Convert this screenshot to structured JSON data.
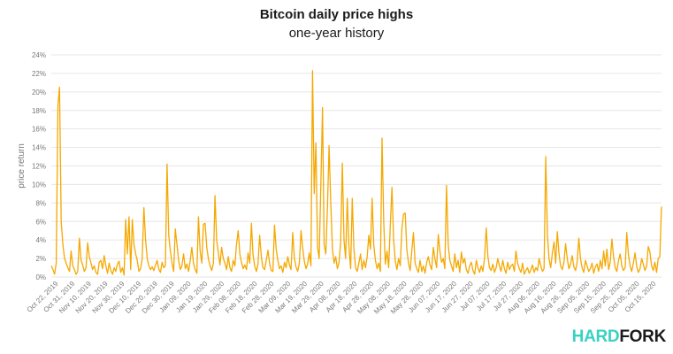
{
  "chart_data": {
    "type": "line",
    "title": "Bitcoin daily price highs",
    "subtitle": "one-year history",
    "ylabel": "price return",
    "xlabel": "",
    "ylim": [
      0,
      24
    ],
    "y_unit": "%",
    "y_ticks": [
      0,
      2,
      4,
      6,
      8,
      10,
      12,
      14,
      16,
      18,
      20,
      22,
      24
    ],
    "grid": true,
    "line_color": "#f5a800",
    "x_tick_labels": [
      "Oct 22, 2019",
      "Oct 31, 2019",
      "Nov 10, 2019",
      "Nov 20, 2019",
      "Nov 30, 2019",
      "Dec 10, 2019",
      "Dec 20, 2019",
      "Dec 30, 2019",
      "Jan 09, 2020",
      "Jan 19, 2020",
      "Jan 29, 2020",
      "Feb 08, 2020",
      "Feb 18, 2020",
      "Feb 28, 2020",
      "Mar 09, 2020",
      "Mar 19, 2020",
      "Mar 29, 2020",
      "Apr 08, 2020",
      "Apr 18, 2020",
      "Apr 28, 2020",
      "May 08, 2020",
      "May 18, 2020",
      "May 28, 2020",
      "Jun 07, 2020",
      "Jun 17, 2020",
      "Jun 27, 2020",
      "Jul 07, 2020",
      "Jul 17, 2020",
      "Jul 27, 2020",
      "Aug 06, 2020",
      "Aug 16, 2020",
      "Aug 26, 2020",
      "Sep 05, 2020",
      "Sep 15, 2020",
      "Sep 25, 2020",
      "Oct 05, 2020",
      "Oct 15, 2020"
    ],
    "series": [
      {
        "values": [
          1.2,
          0.8,
          0.3,
          1.5,
          18.5,
          20.5,
          6.0,
          3.5,
          2.0,
          1.5,
          1.0,
          0.6,
          2.8,
          1.2,
          0.8,
          0.3,
          0.6,
          4.2,
          1.8,
          1.3,
          0.6,
          1.0,
          3.7,
          2.2,
          1.5,
          0.8,
          1.2,
          0.5,
          0.3,
          1.6,
          1.8,
          0.9,
          2.3,
          1.2,
          0.4,
          1.5,
          0.7,
          0.3,
          1.0,
          0.6,
          1.4,
          1.7,
          0.5,
          1.0,
          0.2,
          6.2,
          2.5,
          6.5,
          0.8,
          6.2,
          3.5,
          2.5,
          1.8,
          0.6,
          0.9,
          2.0,
          7.5,
          4.0,
          2.0,
          1.2,
          0.8,
          1.1,
          0.7,
          1.3,
          1.8,
          0.9,
          0.5,
          1.6,
          1.0,
          1.2,
          12.2,
          4.5,
          2.8,
          1.5,
          0.6,
          5.2,
          3.5,
          1.8,
          0.8,
          1.2,
          2.5,
          0.9,
          1.4,
          0.6,
          1.8,
          3.2,
          1.5,
          0.8,
          0.4,
          6.5,
          2.8,
          1.5,
          5.7,
          5.8,
          3.2,
          2.0,
          1.2,
          0.7,
          1.5,
          8.8,
          4.0,
          2.6,
          1.3,
          3.2,
          2.0,
          1.5,
          0.8,
          2.2,
          1.0,
          0.6,
          1.8,
          1.2,
          3.5,
          5.0,
          2.5,
          1.6,
          0.9,
          1.3,
          0.8,
          2.6,
          1.5,
          5.8,
          2.4,
          1.2,
          0.6,
          1.4,
          4.5,
          2.2,
          1.0,
          0.8,
          1.8,
          2.9,
          1.5,
          0.7,
          0.6,
          5.6,
          3.0,
          1.8,
          0.9,
          1.2,
          0.5,
          1.6,
          1.0,
          2.2,
          1.3,
          0.8,
          4.8,
          2.0,
          1.1,
          0.6,
          1.5,
          5.0,
          3.2,
          1.7,
          0.9,
          1.4,
          2.6,
          1.2,
          22.3,
          9.0,
          14.5,
          3.2,
          2.0,
          10.0,
          18.3,
          3.5,
          2.5,
          7.6,
          14.2,
          8.0,
          3.0,
          1.5,
          2.2,
          0.9,
          1.6,
          3.8,
          12.3,
          4.0,
          2.0,
          8.5,
          3.2,
          0.9,
          8.5,
          3.0,
          1.0,
          0.6,
          1.5,
          2.5,
          0.8,
          1.8,
          1.0,
          2.2,
          4.5,
          3.0,
          8.5,
          3.5,
          1.8,
          0.9,
          1.5,
          0.6,
          15.0,
          6.0,
          1.4,
          2.8,
          1.0,
          5.5,
          9.7,
          4.0,
          1.8,
          0.8,
          2.0,
          1.2,
          5.2,
          6.8,
          6.9,
          3.0,
          1.5,
          0.7,
          2.8,
          4.8,
          1.5,
          0.9,
          0.5,
          1.8,
          0.6,
          1.2,
          0.4,
          1.6,
          2.2,
          1.3,
          0.8,
          3.2,
          2.0,
          1.0,
          4.6,
          2.8,
          1.6,
          2.0,
          0.9,
          9.9,
          3.5,
          1.8,
          1.2,
          0.6,
          2.5,
          1.0,
          1.8,
          0.5,
          2.7,
          1.5,
          2.0,
          0.8,
          0.4,
          1.2,
          1.6,
          0.7,
          0.3,
          1.8,
          1.0,
          0.5,
          1.2,
          0.6,
          2.0,
          5.3,
          2.2,
          1.0,
          0.7,
          1.4,
          0.5,
          1.0,
          2.0,
          1.2,
          0.6,
          1.8,
          0.9,
          0.4,
          1.6,
          0.8,
          1.2,
          1.4,
          0.6,
          2.8,
          1.5,
          0.9,
          0.5,
          1.5,
          0.3,
          0.7,
          1.0,
          0.4,
          0.8,
          1.3,
          0.5,
          1.0,
          0.7,
          2.0,
          1.2,
          0.6,
          0.9,
          13.0,
          4.5,
          2.0,
          1.0,
          2.6,
          3.8,
          1.5,
          4.9,
          2.5,
          1.2,
          0.8,
          1.6,
          3.6,
          2.0,
          0.9,
          1.4,
          2.3,
          1.1,
          0.7,
          1.6,
          4.2,
          2.0,
          1.0,
          0.5,
          1.8,
          1.2,
          0.6,
          0.9,
          1.5,
          0.4,
          1.1,
          1.4,
          0.6,
          1.8,
          0.9,
          2.8,
          1.2,
          3.0,
          0.8,
          1.6,
          4.1,
          2.2,
          1.0,
          0.6,
          1.8,
          2.5,
          1.2,
          0.7,
          1.0,
          4.8,
          2.4,
          1.2,
          0.6,
          1.5,
          2.6,
          1.1,
          0.5,
          0.9,
          2.0,
          1.4,
          0.7,
          1.2,
          3.3,
          2.7,
          1.2,
          0.7,
          1.6,
          0.5,
          2.0,
          2.2,
          7.6
        ]
      }
    ]
  },
  "brand": {
    "part1": "HARD",
    "part2": "FORK"
  }
}
